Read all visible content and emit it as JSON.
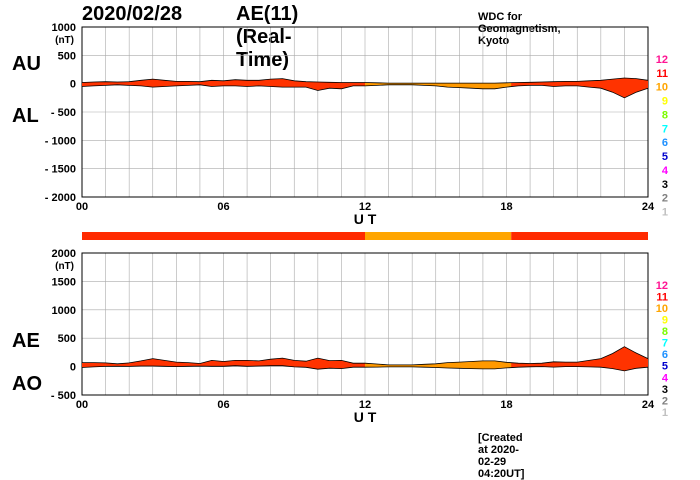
{
  "header": {
    "date": "2020/02/28",
    "title": "AE(11) (Real-Time)",
    "source": "WDC for Geomagnetism, Kyoto"
  },
  "footer": {
    "created": "[Created at 2020-02-29 04:20UT]"
  },
  "colors": {
    "fill_main": "#ff3300",
    "fill_alt": "#ff9900",
    "grid": "#aaaaaa",
    "station_bar_main": "#ff2a00",
    "station_bar_alt": "#ffa500"
  },
  "legend": {
    "station_counts": [
      {
        "label": "12",
        "color": "#ff1493"
      },
      {
        "label": "11",
        "color": "#ff0000"
      },
      {
        "label": "10",
        "color": "#ffa500"
      },
      {
        "label": "9",
        "color": "#ffff00"
      },
      {
        "label": "8",
        "color": "#7cfc00"
      },
      {
        "label": "7",
        "color": "#00ffff"
      },
      {
        "label": "6",
        "color": "#1e90ff"
      },
      {
        "label": "5",
        "color": "#0000cd"
      },
      {
        "label": "4",
        "color": "#ff00ff"
      },
      {
        "label": "3",
        "color": "#000000"
      },
      {
        "label": "2",
        "color": "#808080"
      },
      {
        "label": "1",
        "color": "#c0c0c0"
      }
    ]
  },
  "chart_data": [
    {
      "type": "area",
      "name": "AU/AL panel",
      "xlabel": "U T",
      "ylabel": "(nT)",
      "series_labels": [
        "AU",
        "AL"
      ],
      "xlim": [
        0,
        24
      ],
      "ylim": [
        -2000,
        1000
      ],
      "x_ticks": [
        "00",
        "06",
        "12",
        "18",
        "24"
      ],
      "y_ticks": [
        "1000",
        "500",
        "0",
        "- 500",
        "- 1000",
        "- 1500",
        "- 2000"
      ],
      "y_tick_values": [
        1000,
        500,
        0,
        -500,
        -1000,
        -1500,
        -2000
      ],
      "grid": true,
      "x": [
        0,
        0.5,
        1,
        1.5,
        2,
        2.5,
        3,
        3.5,
        4,
        4.5,
        5,
        5.5,
        6,
        6.5,
        7,
        7.5,
        8,
        8.5,
        9,
        9.5,
        10,
        10.5,
        11,
        11.5,
        12,
        12.5,
        13,
        13.5,
        14,
        14.5,
        15,
        15.5,
        16,
        16.5,
        17,
        17.5,
        18,
        18.5,
        19,
        19.5,
        20,
        20.5,
        21,
        21.5,
        22,
        22.5,
        23,
        23.5,
        24
      ],
      "series": [
        {
          "name": "AU",
          "values": [
            20,
            30,
            35,
            30,
            35,
            60,
            80,
            60,
            40,
            40,
            35,
            60,
            50,
            70,
            60,
            60,
            80,
            90,
            50,
            35,
            30,
            25,
            20,
            20,
            20,
            15,
            10,
            10,
            10,
            10,
            10,
            10,
            10,
            10,
            10,
            10,
            15,
            20,
            25,
            30,
            35,
            40,
            40,
            50,
            60,
            80,
            100,
            90,
            60
          ]
        },
        {
          "name": "AL",
          "values": [
            -50,
            -40,
            -30,
            -20,
            -30,
            -40,
            -60,
            -50,
            -40,
            -30,
            -20,
            -50,
            -40,
            -40,
            -50,
            -40,
            -50,
            -60,
            -60,
            -60,
            -120,
            -80,
            -90,
            -40,
            -40,
            -30,
            -20,
            -20,
            -20,
            -30,
            -40,
            -60,
            -70,
            -80,
            -90,
            -90,
            -60,
            -40,
            -30,
            -30,
            -50,
            -40,
            -40,
            -60,
            -80,
            -150,
            -250,
            -150,
            -80
          ]
        }
      ]
    },
    {
      "type": "area",
      "name": "AE/AO panel",
      "xlabel": "U T",
      "ylabel": "(nT)",
      "series_labels": [
        "AE",
        "AO"
      ],
      "xlim": [
        0,
        24
      ],
      "ylim": [
        -500,
        2000
      ],
      "x_ticks": [
        "00",
        "06",
        "12",
        "18",
        "24"
      ],
      "y_ticks": [
        "2000",
        "1500",
        "1000",
        "500",
        "0",
        "- 500"
      ],
      "y_tick_values": [
        2000,
        1500,
        1000,
        500,
        0,
        -500
      ],
      "grid": true,
      "x": [
        0,
        0.5,
        1,
        1.5,
        2,
        2.5,
        3,
        3.5,
        4,
        4.5,
        5,
        5.5,
        6,
        6.5,
        7,
        7.5,
        8,
        8.5,
        9,
        9.5,
        10,
        10.5,
        11,
        11.5,
        12,
        12.5,
        13,
        13.5,
        14,
        14.5,
        15,
        15.5,
        16,
        16.5,
        17,
        17.5,
        18,
        18.5,
        19,
        19.5,
        20,
        20.5,
        21,
        21.5,
        22,
        22.5,
        23,
        23.5,
        24
      ],
      "series": [
        {
          "name": "AE",
          "values": [
            70,
            70,
            65,
            50,
            65,
            100,
            140,
            110,
            80,
            70,
            55,
            110,
            90,
            110,
            110,
            100,
            130,
            150,
            110,
            95,
            150,
            105,
            110,
            60,
            60,
            45,
            30,
            30,
            30,
            40,
            50,
            70,
            80,
            90,
            100,
            100,
            75,
            60,
            55,
            60,
            85,
            80,
            80,
            110,
            140,
            230,
            350,
            240,
            140
          ]
        },
        {
          "name": "AO",
          "values": [
            -15,
            -5,
            3,
            5,
            3,
            10,
            10,
            5,
            0,
            5,
            8,
            5,
            5,
            15,
            5,
            10,
            15,
            15,
            -5,
            -13,
            -45,
            -28,
            -35,
            -10,
            -10,
            -8,
            -5,
            -5,
            -5,
            -10,
            -15,
            -25,
            -30,
            -35,
            -40,
            -40,
            -23,
            -10,
            -3,
            0,
            -8,
            0,
            0,
            -5,
            -10,
            -35,
            -75,
            -30,
            -10
          ]
        }
      ]
    }
  ],
  "station_bar": {
    "segments": [
      {
        "start": 0,
        "end": 12,
        "count": 11
      },
      {
        "start": 12,
        "end": 18.2,
        "count": 10
      },
      {
        "start": 18.2,
        "end": 24,
        "count": 11
      }
    ]
  }
}
